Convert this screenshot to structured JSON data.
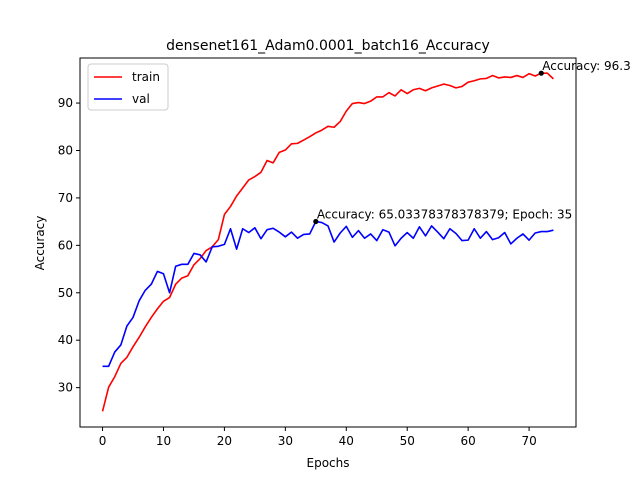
{
  "chart_data": {
    "type": "line",
    "title": "densenet161_Adam0.0001_batch16_Accuracy",
    "xlabel": "Epochs",
    "ylabel": "Accuracy",
    "xlim": [
      -3.7,
      77.7
    ],
    "ylim": [
      21.7,
      99.5
    ],
    "xticks": [
      0,
      10,
      20,
      30,
      40,
      50,
      60,
      70
    ],
    "yticks": [
      30,
      40,
      50,
      60,
      70,
      80,
      90
    ],
    "grid": false,
    "legend_position": "top-left",
    "series": [
      {
        "name": "train",
        "color": "#ff0000",
        "x": [
          0,
          1,
          2,
          3,
          4,
          5,
          6,
          7,
          8,
          9,
          10,
          11,
          12,
          13,
          14,
          15,
          16,
          17,
          18,
          19,
          20,
          21,
          22,
          23,
          24,
          25,
          26,
          27,
          28,
          29,
          30,
          31,
          32,
          33,
          34,
          35,
          36,
          37,
          38,
          39,
          40,
          41,
          42,
          43,
          44,
          45,
          46,
          47,
          48,
          49,
          50,
          51,
          52,
          53,
          54,
          55,
          56,
          57,
          58,
          59,
          60,
          61,
          62,
          63,
          64,
          65,
          66,
          67,
          68,
          69,
          70,
          71,
          72,
          73,
          74
        ],
        "values": [
          25.0,
          30.1,
          32.3,
          35.1,
          36.4,
          38.6,
          40.6,
          42.8,
          44.8,
          46.6,
          48.2,
          49.0,
          51.8,
          53.1,
          53.6,
          55.9,
          57.2,
          58.9,
          59.7,
          61.2,
          66.5,
          68.2,
          70.4,
          72.1,
          73.8,
          74.5,
          75.4,
          77.9,
          77.4,
          79.6,
          80.1,
          81.4,
          81.5,
          82.2,
          82.9,
          83.7,
          84.3,
          85.1,
          84.9,
          86.1,
          88.3,
          89.9,
          90.1,
          89.9,
          90.4,
          91.3,
          91.3,
          92.2,
          91.5,
          92.8,
          92.0,
          92.8,
          93.1,
          92.6,
          93.2,
          93.6,
          94.0,
          93.7,
          93.2,
          93.5,
          94.4,
          94.7,
          95.1,
          95.2,
          95.8,
          95.3,
          95.5,
          95.4,
          95.8,
          95.4,
          96.2,
          95.7,
          96.3,
          96.3,
          95.1
        ]
      },
      {
        "name": "val",
        "color": "#0000ff",
        "x": [
          0,
          1,
          2,
          3,
          4,
          5,
          6,
          7,
          8,
          9,
          10,
          11,
          12,
          13,
          14,
          15,
          16,
          17,
          18,
          19,
          20,
          21,
          22,
          23,
          24,
          25,
          26,
          27,
          28,
          29,
          30,
          31,
          32,
          33,
          34,
          35,
          36,
          37,
          38,
          39,
          40,
          41,
          42,
          43,
          44,
          45,
          46,
          47,
          48,
          49,
          50,
          51,
          52,
          53,
          54,
          55,
          56,
          57,
          58,
          59,
          60,
          61,
          62,
          63,
          64,
          65,
          66,
          67,
          68,
          69,
          70,
          71,
          72,
          73,
          74
        ],
        "values": [
          34.5,
          34.5,
          37.5,
          39.0,
          43.0,
          44.8,
          48.3,
          50.5,
          51.8,
          54.5,
          54.0,
          50.0,
          55.6,
          56.0,
          56.0,
          58.3,
          58.0,
          56.5,
          59.7,
          59.8,
          60.2,
          63.5,
          59.2,
          63.5,
          62.7,
          63.7,
          61.4,
          63.3,
          63.6,
          62.8,
          61.8,
          62.8,
          61.5,
          62.3,
          62.4,
          65.03,
          64.8,
          64.1,
          60.7,
          62.6,
          64.0,
          61.7,
          63.1,
          61.5,
          62.4,
          61.0,
          63.3,
          62.8,
          59.9,
          61.5,
          62.7,
          61.5,
          63.9,
          62.0,
          64.1,
          62.8,
          61.4,
          63.5,
          62.5,
          61.0,
          61.1,
          63.5,
          61.5,
          62.9,
          61.2,
          61.6,
          62.7,
          60.3,
          61.5,
          62.4,
          61.1,
          62.6,
          62.9,
          62.9,
          63.2
        ]
      }
    ],
    "markers": [
      {
        "x": 72,
        "y": 96.3,
        "color": "#000000"
      },
      {
        "x": 35,
        "y": 65.03,
        "color": "#000000"
      }
    ],
    "annotations": [
      {
        "text": "Accuracy: 96.3",
        "x": 72,
        "y": 96.3
      },
      {
        "text": "Accuracy: 65.03378378378379; Epoch: 35",
        "x": 35,
        "y": 65.03
      }
    ]
  }
}
